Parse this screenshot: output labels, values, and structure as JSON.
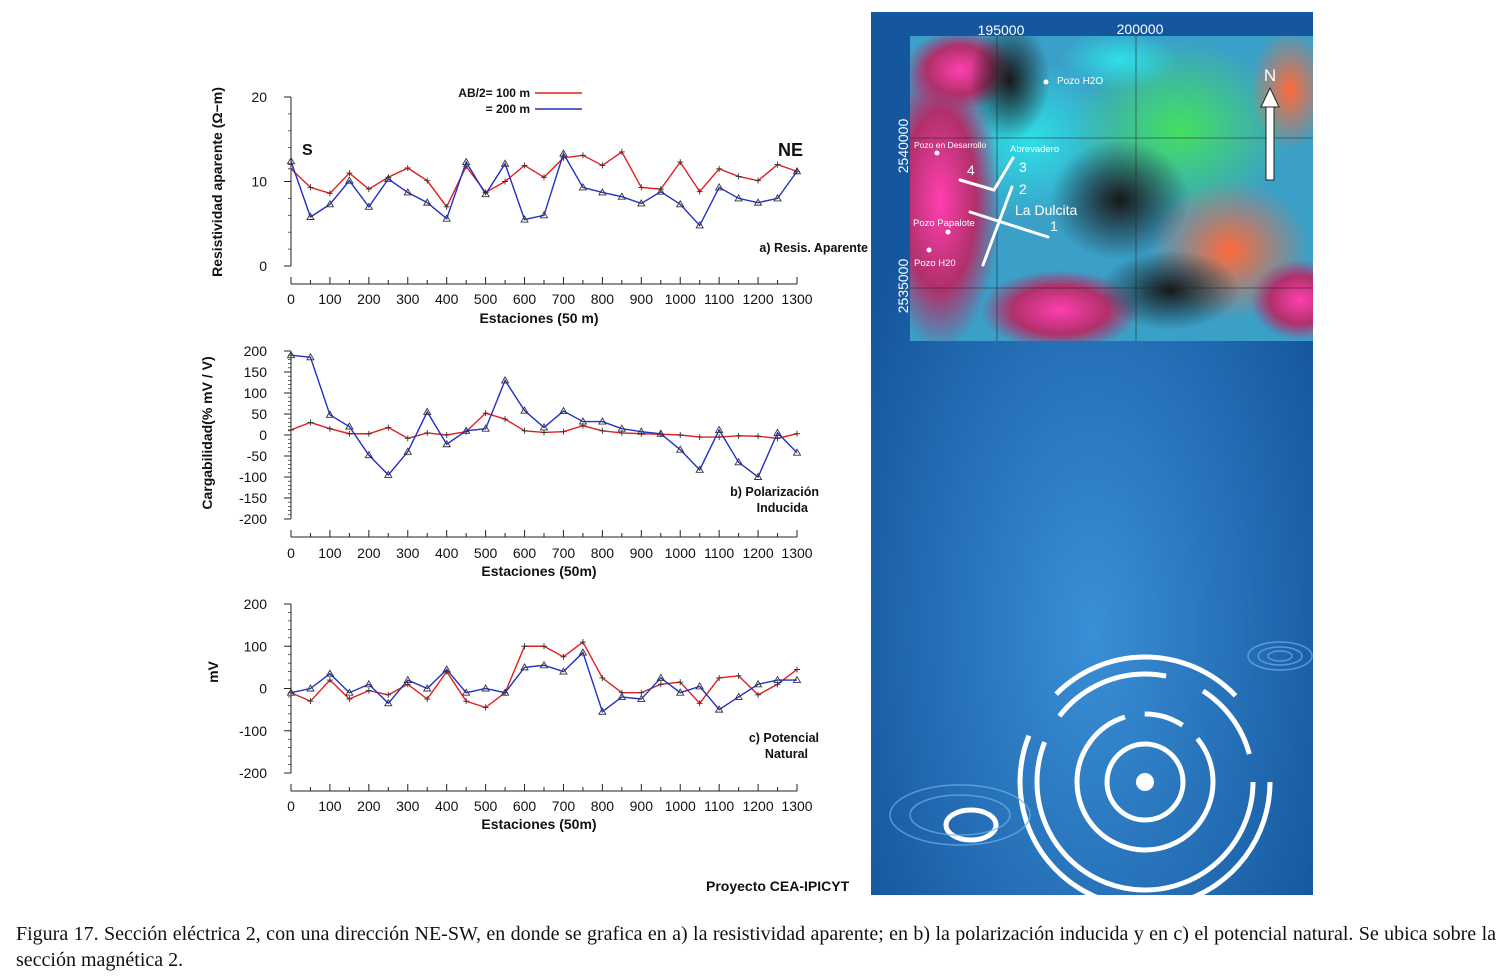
{
  "figure": {
    "caption": "Figura 17. Sección eléctrica 2, con una dirección NE-SW, en donde se grafica en a) la resistividad aparente; en b) la polarización inducida y en c) el potencial natural. Se ubica sobre la sección magnética 2.",
    "project": "Proyecto CEA-IPICYT"
  },
  "colors": {
    "red": "#e02020",
    "blue": "#2030c8",
    "axis": "#222222",
    "map_bg": "#1e6cb4"
  },
  "chart_data": [
    {
      "id": "a",
      "type": "line",
      "title": "a) Resis. Aparente",
      "xlabel": "Estaciones (50 m)",
      "ylabel": "Resistividad aparente (Ω−m)",
      "xlim": [
        0,
        1300
      ],
      "ylim": [
        0,
        20
      ],
      "xticks": [
        0,
        100,
        200,
        300,
        400,
        500,
        600,
        700,
        800,
        900,
        1000,
        1100,
        1200,
        1300
      ],
      "yticks": [
        0,
        10,
        20
      ],
      "legend": {
        "placement": "top-center",
        "label_1": "AB/2= 100 m",
        "label_2": "= 200 m"
      },
      "annotations": {
        "left": "S",
        "right": "NE"
      },
      "x": [
        0,
        50,
        100,
        150,
        200,
        250,
        300,
        350,
        400,
        450,
        500,
        550,
        600,
        650,
        700,
        750,
        800,
        850,
        900,
        950,
        1000,
        1050,
        1100,
        1150,
        1200,
        1250,
        1300
      ],
      "series": [
        {
          "name": "AB/2= 100 m",
          "color": "red",
          "values": [
            11.5,
            9.3,
            8.6,
            11.0,
            9.1,
            10.5,
            11.6,
            10.1,
            7.0,
            11.8,
            8.7,
            10.0,
            11.9,
            10.5,
            12.8,
            13.1,
            11.9,
            13.5,
            9.3,
            9.1,
            12.3,
            8.8,
            11.5,
            10.6,
            10.1,
            12.0,
            11.2
          ]
        },
        {
          "name": "= 200 m",
          "color": "blue",
          "values": [
            12.4,
            5.8,
            7.3,
            10.1,
            7.0,
            10.3,
            8.7,
            7.5,
            5.6,
            12.3,
            8.5,
            12.1,
            5.5,
            6.0,
            13.3,
            9.3,
            8.7,
            8.2,
            7.4,
            8.8,
            7.3,
            4.8,
            9.3,
            8.0,
            7.5,
            8.0,
            11.2
          ]
        }
      ]
    },
    {
      "id": "b",
      "type": "line",
      "title_1": "b) Polarización",
      "title_2": "Inducida",
      "xlabel": "Estaciones (50m)",
      "ylabel": "Cargabilidad(% mV / V)",
      "xlim": [
        0,
        1300
      ],
      "ylim": [
        -200,
        200
      ],
      "xticks": [
        0,
        100,
        200,
        300,
        400,
        500,
        600,
        700,
        800,
        900,
        1000,
        1100,
        1200,
        1300
      ],
      "yticks": [
        -200,
        -150,
        -100,
        -50,
        0,
        50,
        100,
        150,
        200
      ],
      "x": [
        0,
        50,
        100,
        150,
        200,
        250,
        300,
        350,
        400,
        450,
        500,
        550,
        600,
        650,
        700,
        750,
        800,
        850,
        900,
        950,
        1000,
        1050,
        1100,
        1150,
        1200,
        1250,
        1300
      ],
      "series": [
        {
          "name": "AB/2= 100 m",
          "color": "red",
          "values": [
            12,
            30,
            15,
            3,
            3,
            18,
            -8,
            5,
            0,
            8,
            52,
            38,
            10,
            6,
            8,
            22,
            10,
            5,
            3,
            2,
            0,
            -5,
            -5,
            -2,
            -3,
            -8,
            3
          ]
        },
        {
          "name": "= 200 m",
          "color": "blue",
          "values": [
            190,
            185,
            48,
            20,
            -48,
            -95,
            -40,
            55,
            -22,
            10,
            15,
            130,
            58,
            18,
            57,
            32,
            32,
            15,
            8,
            3,
            -35,
            -83,
            12,
            -65,
            -100,
            5,
            -42
          ]
        }
      ]
    },
    {
      "id": "c",
      "type": "line",
      "title_1": "c) Potencial",
      "title_2": "Natural",
      "xlabel": "Estaciones (50m)",
      "ylabel": "mV",
      "xlim": [
        0,
        1300
      ],
      "ylim": [
        -200,
        200
      ],
      "xticks": [
        0,
        100,
        200,
        300,
        400,
        500,
        600,
        700,
        800,
        900,
        1000,
        1100,
        1200,
        1300
      ],
      "yticks": [
        -200,
        -100,
        0,
        100,
        200
      ],
      "x": [
        0,
        50,
        100,
        150,
        200,
        250,
        300,
        350,
        400,
        450,
        500,
        550,
        600,
        650,
        700,
        750,
        800,
        850,
        900,
        950,
        1000,
        1050,
        1100,
        1150,
        1200,
        1250,
        1300
      ],
      "series": [
        {
          "name": "AB/2= 100 m",
          "color": "red",
          "values": [
            -10,
            -30,
            20,
            -25,
            -5,
            -15,
            10,
            -25,
            40,
            -30,
            -45,
            -10,
            100,
            100,
            75,
            110,
            25,
            -10,
            -10,
            10,
            15,
            -35,
            25,
            30,
            -15,
            10,
            45
          ]
        },
        {
          "name": "= 200 m",
          "color": "blue",
          "values": [
            -10,
            0,
            35,
            -10,
            10,
            -35,
            20,
            0,
            45,
            -10,
            0,
            -10,
            50,
            55,
            40,
            85,
            -55,
            -20,
            -25,
            25,
            -10,
            5,
            -50,
            -20,
            10,
            20,
            20
          ]
        }
      ]
    }
  ],
  "map": {
    "x_labels": [
      "195000",
      "200000"
    ],
    "y_labels": [
      "2540000",
      "2535000"
    ],
    "north": "N",
    "places": [
      "Pozo H2O",
      "Pozo en Desarrollo",
      "Abrevadero",
      "Pozo Papalote",
      "Pozo H20",
      "La Dulcita"
    ],
    "line_numbers": [
      "1",
      "2",
      "3",
      "4"
    ]
  }
}
